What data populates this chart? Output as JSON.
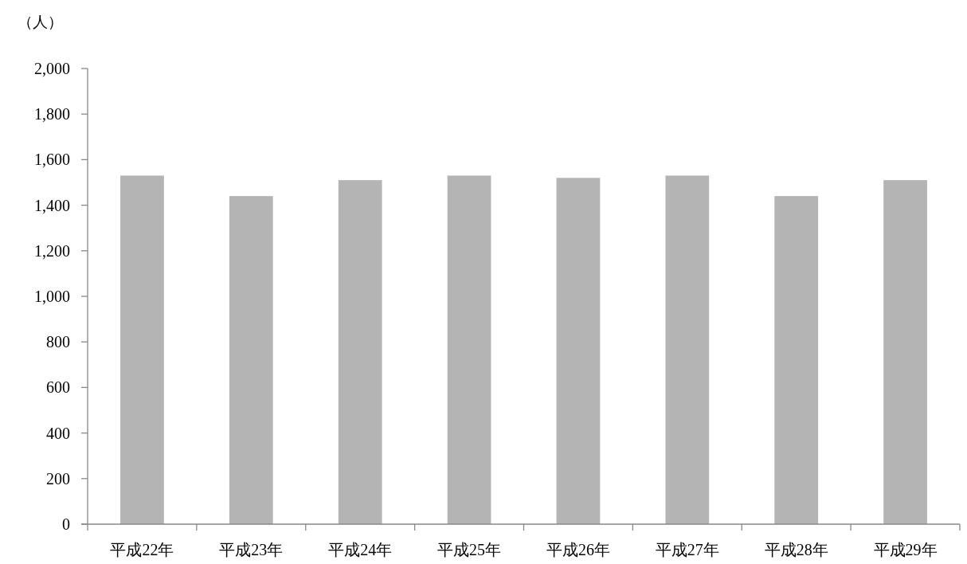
{
  "chart_data": {
    "type": "bar",
    "ylabel": "（人）",
    "categories": [
      "平成22年",
      "平成23年",
      "平成24年",
      "平成25年",
      "平成26年",
      "平成27年",
      "平成28年",
      "平成29年"
    ],
    "values": [
      1530,
      1440,
      1510,
      1530,
      1520,
      1530,
      1440,
      1510
    ],
    "color": "#b4b4b4",
    "ylim": [
      0,
      2000
    ],
    "yticks": [
      {
        "value": 0,
        "label": "0"
      },
      {
        "value": 200,
        "label": "200"
      },
      {
        "value": 400,
        "label": "400"
      },
      {
        "value": 600,
        "label": "600"
      },
      {
        "value": 800,
        "label": "800"
      },
      {
        "value": 1000,
        "label": "1,000"
      },
      {
        "value": 1200,
        "label": "1,200"
      },
      {
        "value": 1400,
        "label": "1,400"
      },
      {
        "value": 1600,
        "label": "1,600"
      },
      {
        "value": 1800,
        "label": "1,800"
      },
      {
        "value": 2000,
        "label": "2,000"
      }
    ],
    "grid": false
  }
}
